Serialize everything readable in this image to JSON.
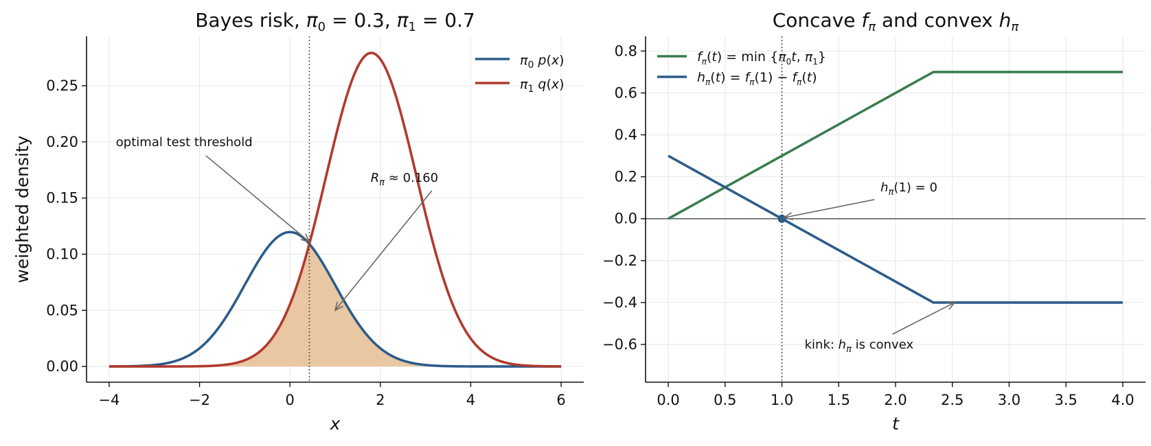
{
  "chart_data": [
    {
      "type": "line",
      "title": "Bayes risk, π₀ = 0.3, π₁ = 0.7",
      "xlabel": "x",
      "ylabel": "weighted density",
      "xlim": [
        -4.5,
        6.5
      ],
      "ylim": [
        -0.014,
        0.294
      ],
      "xticks": [
        -4,
        -2,
        0,
        2,
        4,
        6
      ],
      "yticks": [
        0.0,
        0.05,
        0.1,
        0.15,
        0.2,
        0.25
      ],
      "xtick_labels": [
        "−4",
        "−2",
        "0",
        "2",
        "4",
        "6"
      ],
      "ytick_labels": [
        "0.00",
        "0.05",
        "0.10",
        "0.15",
        "0.20",
        "0.25"
      ],
      "grid": true,
      "legend_position": "top-right",
      "series": [
        {
          "name": "π₀ p(x)",
          "color": "#2c5c8a",
          "weight": 0.3,
          "mean": 0,
          "sd": 1
        },
        {
          "name": "π₁ q(x)",
          "color": "#b03a2e",
          "weight": 0.7,
          "mean": 1.8,
          "sd": 1
        }
      ],
      "shaded_region": {
        "description": "min of the two weighted densities",
        "color": "#e8c7a2"
      },
      "threshold": {
        "x": 0.43
      },
      "annotations": [
        {
          "text": "optimal test threshold",
          "x": -3.85,
          "y": 0.2,
          "arrow_to": [
            0.43,
            0.111
          ]
        },
        {
          "text": "R_π ≈ 0.160",
          "x": 2.5,
          "y": 0.168,
          "arrow_to": [
            1.0,
            0.05
          ]
        }
      ]
    },
    {
      "type": "line",
      "title": "Concave f_π and convex h_π",
      "xlabel": "t",
      "ylabel": "",
      "xlim": [
        -0.2,
        4.2
      ],
      "ylim": [
        -0.78,
        0.87
      ],
      "xticks": [
        0,
        0.5,
        1,
        1.5,
        2,
        2.5,
        3,
        3.5,
        4
      ],
      "yticks": [
        -0.6,
        -0.4,
        -0.2,
        0,
        0.2,
        0.4,
        0.6,
        0.8
      ],
      "xtick_labels": [
        "0.0",
        "0.5",
        "1.0",
        "1.5",
        "2.0",
        "2.5",
        "3.0",
        "3.5",
        "4.0"
      ],
      "ytick_labels": [
        "−0.6",
        "−0.4",
        "−0.2",
        "0.0",
        "0.2",
        "0.4",
        "0.6",
        "0.8"
      ],
      "grid": true,
      "legend_position": "top-left",
      "series": [
        {
          "name": "f_π(t) = min{π₀t, π₁}",
          "color": "#3a7d50",
          "x": [
            0,
            2.3333,
            4
          ],
          "y": [
            0,
            0.7,
            0.7
          ]
        },
        {
          "name": "h_π(t) = f_π(1) − f_π(t)",
          "color": "#2c5c8a",
          "x": [
            0,
            2.3333,
            4
          ],
          "y": [
            0.3,
            -0.4,
            -0.4
          ]
        }
      ],
      "reference_lines": {
        "hline": 0,
        "vline": 1
      },
      "point": {
        "x": 1,
        "y": 0
      },
      "annotations": [
        {
          "text": "h_π(1) = 0",
          "x": 1.85,
          "y": 0.15,
          "arrow_to": [
            1.02,
            0.005
          ]
        },
        {
          "text": "kink: h_π is convex",
          "x": 1.2,
          "y": -0.6,
          "arrow_to": [
            2.52,
            -0.4
          ]
        }
      ]
    }
  ]
}
